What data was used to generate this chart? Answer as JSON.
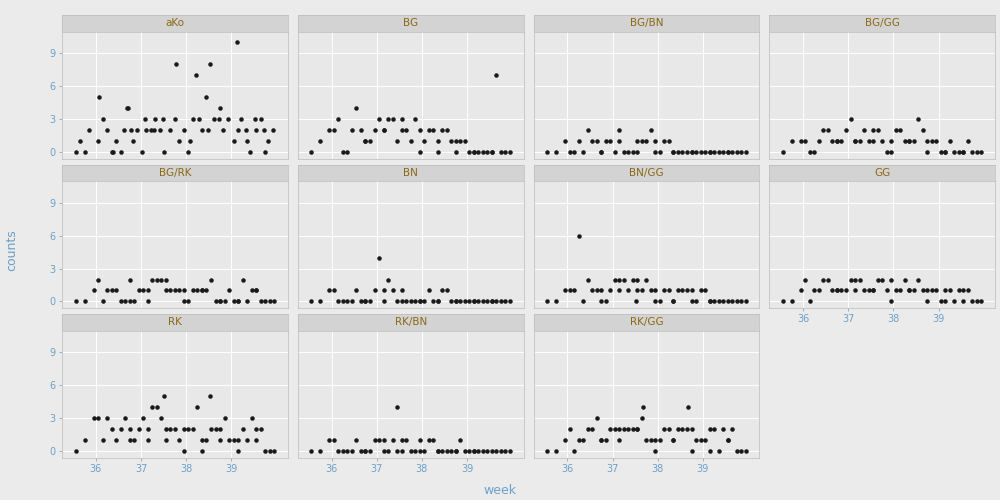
{
  "panels": [
    "aKo",
    "BG",
    "BG/BN",
    "BG/GG",
    "BG/RK",
    "BN",
    "BN/GG",
    "GG",
    "RK",
    "RK/BN",
    "RK/GG"
  ],
  "layout": [
    [
      "aKo",
      "BG",
      "BG/BN",
      "BG/GG"
    ],
    [
      "BG/RK",
      "BN",
      "BN/GG",
      "GG"
    ],
    [
      "RK",
      "RK/BN",
      "RK/GG",
      null
    ]
  ],
  "xlim": [
    35.25,
    40.25
  ],
  "ylim": [
    -0.6,
    11.0
  ],
  "yticks": [
    0,
    3,
    6,
    9
  ],
  "xticks": [
    36,
    37,
    38,
    39
  ],
  "xlabel": "week",
  "ylabel": "counts",
  "fig_bg": "#EBEBEB",
  "panel_bg": "#E8E8E8",
  "strip_bg": "#D3D3D3",
  "grid_color": "#FFFFFF",
  "dot_color": "#1A1A1A",
  "dot_size": 4,
  "title_color": "#8B6914",
  "axis_color": "#6CA0C8",
  "tick_label_size": 7,
  "strip_label_size": 7.5,
  "axis_label_size": 9,
  "data": {
    "aKo": {
      "x": [
        35.55,
        35.65,
        35.75,
        35.85,
        36.05,
        36.15,
        36.25,
        36.35,
        36.45,
        36.55,
        36.62,
        36.72,
        36.82,
        36.92,
        37.02,
        37.12,
        37.22,
        37.32,
        37.42,
        37.52,
        37.65,
        37.75,
        37.85,
        37.95,
        38.05,
        38.15,
        38.22,
        38.35,
        38.45,
        38.52,
        38.62,
        38.75,
        38.82,
        38.92,
        39.05,
        39.12,
        39.22,
        39.32,
        39.42,
        39.55,
        39.65,
        39.72,
        39.82,
        39.92,
        36.08,
        36.68,
        37.28,
        37.78,
        38.28,
        38.72,
        39.15,
        39.52,
        36.38,
        36.78,
        37.08,
        37.48,
        38.08,
        38.48,
        39.35,
        39.75
      ],
      "y": [
        0,
        1,
        0,
        2,
        1,
        3,
        2,
        0,
        1,
        0,
        2,
        4,
        1,
        2,
        0,
        2,
        2,
        3,
        2,
        0,
        2,
        3,
        1,
        2,
        0,
        3,
        7,
        2,
        5,
        8,
        3,
        4,
        2,
        3,
        1,
        10,
        3,
        2,
        0,
        2,
        3,
        2,
        1,
        2,
        5,
        4,
        2,
        8,
        3,
        3,
        2,
        3,
        0,
        2,
        3,
        3,
        1,
        2,
        1,
        0
      ]
    },
    "BG": {
      "x": [
        35.55,
        35.75,
        35.95,
        36.15,
        36.35,
        36.55,
        36.75,
        36.95,
        37.15,
        37.35,
        37.55,
        37.75,
        37.95,
        38.15,
        38.35,
        38.55,
        38.75,
        38.95,
        39.15,
        39.35,
        39.55,
        39.75,
        39.95,
        36.05,
        36.45,
        36.85,
        37.25,
        37.65,
        38.05,
        38.45,
        38.85,
        39.25,
        39.65,
        36.25,
        36.65,
        37.05,
        37.45,
        37.85,
        38.25,
        38.65,
        39.05,
        39.45,
        39.85,
        36.75,
        37.15,
        37.55,
        37.95,
        38.35,
        38.75,
        39.15,
        39.55
      ],
      "y": [
        0,
        1,
        2,
        3,
        0,
        4,
        1,
        2,
        2,
        3,
        3,
        1,
        0,
        2,
        0,
        2,
        0,
        1,
        0,
        0,
        0,
        0,
        0,
        2,
        2,
        1,
        3,
        2,
        1,
        2,
        1,
        0,
        7,
        0,
        2,
        3,
        1,
        3,
        2,
        1,
        0,
        0,
        0,
        1,
        2,
        2,
        2,
        1,
        1,
        0,
        0
      ]
    },
    "BG/BN": {
      "x": [
        35.55,
        35.75,
        35.95,
        36.15,
        36.35,
        36.55,
        36.75,
        36.95,
        37.15,
        37.35,
        37.55,
        37.75,
        37.95,
        38.15,
        38.35,
        38.55,
        38.75,
        38.95,
        39.15,
        39.35,
        39.55,
        39.75,
        39.95,
        36.05,
        36.45,
        36.85,
        37.25,
        37.65,
        38.05,
        38.45,
        38.85,
        39.25,
        39.65,
        36.25,
        36.65,
        37.05,
        37.45,
        37.85,
        38.25,
        38.65,
        39.05,
        39.45,
        39.85,
        36.75,
        37.15,
        37.55,
        37.95,
        38.35,
        38.75,
        39.15,
        39.55
      ],
      "y": [
        0,
        0,
        1,
        0,
        0,
        1,
        0,
        1,
        2,
        0,
        1,
        1,
        0,
        1,
        0,
        0,
        0,
        0,
        0,
        0,
        0,
        0,
        0,
        0,
        2,
        1,
        0,
        1,
        0,
        0,
        0,
        0,
        0,
        1,
        1,
        0,
        0,
        2,
        1,
        0,
        0,
        0,
        0,
        0,
        1,
        0,
        1,
        0,
        0,
        0,
        0
      ]
    },
    "BG/GG": {
      "x": [
        35.55,
        35.75,
        35.95,
        36.15,
        36.35,
        36.55,
        36.75,
        36.95,
        37.15,
        37.35,
        37.55,
        37.75,
        37.95,
        38.15,
        38.35,
        38.55,
        38.75,
        38.95,
        39.15,
        39.35,
        39.55,
        39.75,
        39.95,
        36.05,
        36.45,
        36.85,
        37.25,
        37.65,
        38.05,
        38.45,
        38.85,
        39.25,
        39.65,
        36.25,
        36.65,
        37.05,
        37.45,
        37.85,
        38.25,
        38.65,
        39.05,
        39.45,
        39.85,
        36.75,
        37.15,
        37.55,
        37.95,
        38.35,
        38.75,
        39.15,
        39.55
      ],
      "y": [
        0,
        1,
        1,
        0,
        1,
        2,
        1,
        2,
        1,
        2,
        2,
        1,
        0,
        2,
        1,
        3,
        0,
        1,
        0,
        0,
        0,
        0,
        0,
        1,
        2,
        1,
        1,
        2,
        2,
        1,
        1,
        1,
        1,
        0,
        1,
        3,
        1,
        0,
        1,
        2,
        0,
        0,
        0,
        1,
        1,
        1,
        1,
        1,
        1,
        0,
        0
      ]
    },
    "BG/RK": {
      "x": [
        35.55,
        35.75,
        35.95,
        36.15,
        36.35,
        36.55,
        36.75,
        36.95,
        37.15,
        37.35,
        37.55,
        37.75,
        37.95,
        38.15,
        38.35,
        38.55,
        38.75,
        38.95,
        39.15,
        39.35,
        39.55,
        39.75,
        39.95,
        36.05,
        36.45,
        36.85,
        37.25,
        37.65,
        38.05,
        38.45,
        38.85,
        39.25,
        39.65,
        36.25,
        36.65,
        37.05,
        37.45,
        37.85,
        38.25,
        38.65,
        39.05,
        39.45,
        39.85,
        36.75,
        37.15,
        37.55,
        37.95,
        38.35,
        38.75,
        39.15,
        39.55
      ],
      "y": [
        0,
        0,
        1,
        0,
        1,
        0,
        2,
        1,
        0,
        2,
        1,
        1,
        0,
        1,
        1,
        2,
        0,
        1,
        0,
        0,
        1,
        0,
        0,
        2,
        1,
        0,
        2,
        1,
        0,
        1,
        0,
        2,
        0,
        1,
        0,
        1,
        2,
        1,
        1,
        0,
        0,
        1,
        0,
        0,
        1,
        2,
        1,
        1,
        0,
        0,
        1
      ]
    },
    "BN": {
      "x": [
        35.55,
        35.75,
        35.95,
        36.15,
        36.35,
        36.55,
        36.75,
        36.95,
        37.15,
        37.35,
        37.55,
        37.75,
        37.95,
        38.15,
        38.35,
        38.55,
        38.75,
        38.95,
        39.15,
        39.35,
        39.55,
        39.75,
        39.95,
        36.05,
        36.45,
        36.85,
        37.25,
        37.65,
        38.05,
        38.45,
        38.85,
        39.25,
        39.65,
        36.25,
        36.65,
        37.05,
        37.45,
        37.85,
        38.25,
        38.65,
        39.05,
        39.45,
        39.85,
        36.75,
        37.15,
        37.55,
        37.95,
        38.35,
        38.75,
        39.15,
        39.55
      ],
      "y": [
        0,
        0,
        1,
        0,
        0,
        1,
        0,
        1,
        0,
        1,
        1,
        0,
        0,
        1,
        0,
        1,
        0,
        0,
        0,
        0,
        0,
        0,
        0,
        1,
        0,
        0,
        2,
        0,
        0,
        1,
        0,
        0,
        0,
        0,
        0,
        4,
        0,
        0,
        0,
        0,
        0,
        0,
        0,
        0,
        1,
        0,
        0,
        0,
        0,
        0,
        0
      ]
    },
    "BN/GG": {
      "x": [
        35.55,
        35.75,
        35.95,
        36.15,
        36.35,
        36.55,
        36.75,
        36.95,
        37.15,
        37.35,
        37.55,
        37.75,
        37.95,
        38.15,
        38.35,
        38.55,
        38.75,
        38.95,
        39.15,
        39.35,
        39.55,
        39.75,
        39.95,
        36.05,
        36.45,
        36.85,
        37.25,
        37.65,
        38.05,
        38.45,
        38.85,
        39.25,
        39.65,
        36.25,
        36.65,
        37.05,
        37.45,
        37.85,
        38.25,
        38.65,
        39.05,
        39.45,
        39.85,
        37.52,
        36.75,
        37.15,
        37.55,
        37.95,
        38.35,
        38.75,
        39.15
      ],
      "y": [
        0,
        0,
        1,
        1,
        0,
        1,
        1,
        1,
        2,
        1,
        1,
        2,
        0,
        1,
        0,
        1,
        0,
        1,
        0,
        0,
        0,
        0,
        0,
        1,
        2,
        0,
        2,
        1,
        0,
        1,
        0,
        0,
        0,
        6,
        1,
        2,
        2,
        1,
        1,
        1,
        1,
        0,
        0,
        0,
        0,
        1,
        2,
        1,
        0,
        1,
        0
      ]
    },
    "GG": {
      "x": [
        35.55,
        35.75,
        35.95,
        36.15,
        36.35,
        36.55,
        36.75,
        36.95,
        37.15,
        37.35,
        37.55,
        37.75,
        37.95,
        38.15,
        38.35,
        38.55,
        38.75,
        38.95,
        39.15,
        39.35,
        39.55,
        39.75,
        39.95,
        36.05,
        36.45,
        36.85,
        37.25,
        37.65,
        38.05,
        38.45,
        38.85,
        39.25,
        39.65,
        36.25,
        36.65,
        37.05,
        37.45,
        37.85,
        38.25,
        38.65,
        39.05,
        39.45,
        39.85,
        36.75,
        37.15,
        37.55,
        37.95,
        38.35,
        38.75,
        39.15,
        39.55
      ],
      "y": [
        0,
        0,
        1,
        0,
        1,
        2,
        1,
        1,
        2,
        1,
        1,
        2,
        0,
        1,
        1,
        2,
        0,
        1,
        0,
        0,
        1,
        0,
        0,
        2,
        2,
        1,
        2,
        2,
        1,
        1,
        1,
        1,
        1,
        1,
        1,
        2,
        1,
        1,
        2,
        1,
        0,
        1,
        0,
        1,
        1,
        1,
        2,
        1,
        1,
        1,
        0
      ]
    },
    "RK": {
      "x": [
        35.55,
        35.75,
        35.95,
        36.15,
        36.35,
        36.55,
        36.75,
        36.95,
        37.15,
        37.35,
        37.55,
        37.75,
        37.95,
        38.15,
        38.35,
        38.55,
        38.75,
        38.95,
        39.15,
        39.35,
        39.55,
        39.75,
        39.95,
        36.05,
        36.45,
        36.85,
        37.25,
        37.65,
        38.05,
        38.45,
        38.85,
        39.25,
        39.65,
        36.25,
        36.65,
        37.05,
        37.45,
        37.85,
        38.25,
        38.65,
        39.05,
        39.45,
        39.85,
        37.52,
        38.52,
        36.75,
        37.15,
        37.55,
        37.95,
        38.35,
        38.75,
        39.15,
        39.55
      ],
      "y": [
        0,
        1,
        3,
        1,
        2,
        2,
        1,
        2,
        2,
        4,
        1,
        2,
        0,
        2,
        0,
        2,
        1,
        1,
        0,
        1,
        1,
        0,
        0,
        3,
        1,
        1,
        4,
        2,
        2,
        1,
        3,
        2,
        2,
        3,
        3,
        3,
        3,
        1,
        4,
        2,
        1,
        3,
        0,
        5,
        5,
        2,
        1,
        2,
        2,
        1,
        2,
        1,
        2
      ]
    },
    "RK/BN": {
      "x": [
        35.55,
        35.75,
        35.95,
        36.15,
        36.35,
        36.55,
        36.75,
        36.95,
        37.15,
        37.35,
        37.55,
        37.75,
        37.95,
        38.15,
        38.35,
        38.55,
        38.75,
        38.95,
        39.15,
        39.35,
        39.55,
        39.75,
        39.95,
        36.05,
        36.45,
        36.85,
        37.25,
        37.65,
        38.05,
        38.45,
        38.85,
        39.25,
        39.65,
        36.25,
        36.65,
        37.05,
        37.45,
        37.85,
        38.25,
        38.65,
        39.05,
        39.45,
        39.85,
        37.45,
        36.75,
        37.15,
        37.55,
        37.95,
        38.35,
        38.75,
        39.15
      ],
      "y": [
        0,
        0,
        1,
        0,
        0,
        1,
        0,
        1,
        1,
        1,
        1,
        0,
        0,
        1,
        0,
        0,
        0,
        0,
        0,
        0,
        0,
        0,
        0,
        1,
        0,
        0,
        0,
        1,
        0,
        0,
        1,
        0,
        0,
        0,
        0,
        1,
        0,
        0,
        1,
        0,
        0,
        0,
        0,
        4,
        0,
        0,
        0,
        1,
        0,
        0,
        0
      ]
    },
    "RK/GG": {
      "x": [
        35.55,
        35.75,
        35.95,
        36.15,
        36.35,
        36.55,
        36.75,
        36.95,
        37.15,
        37.35,
        37.55,
        37.75,
        37.95,
        38.15,
        38.35,
        38.55,
        38.75,
        38.95,
        39.15,
        39.35,
        39.55,
        39.75,
        39.95,
        36.05,
        36.45,
        36.85,
        37.25,
        37.65,
        38.05,
        38.45,
        38.85,
        39.25,
        39.65,
        36.25,
        36.65,
        37.05,
        37.45,
        37.85,
        38.25,
        38.65,
        39.05,
        39.45,
        39.85,
        37.68,
        38.68,
        36.75,
        37.15,
        37.55,
        37.95,
        38.35,
        38.75,
        39.15,
        39.55
      ],
      "y": [
        0,
        0,
        1,
        0,
        1,
        2,
        1,
        2,
        2,
        2,
        2,
        1,
        0,
        2,
        1,
        2,
        0,
        1,
        0,
        0,
        1,
        0,
        0,
        2,
        2,
        1,
        2,
        3,
        1,
        2,
        1,
        2,
        2,
        1,
        3,
        2,
        2,
        1,
        2,
        2,
        1,
        2,
        0,
        4,
        4,
        1,
        1,
        2,
        1,
        1,
        2,
        2,
        1
      ]
    }
  }
}
